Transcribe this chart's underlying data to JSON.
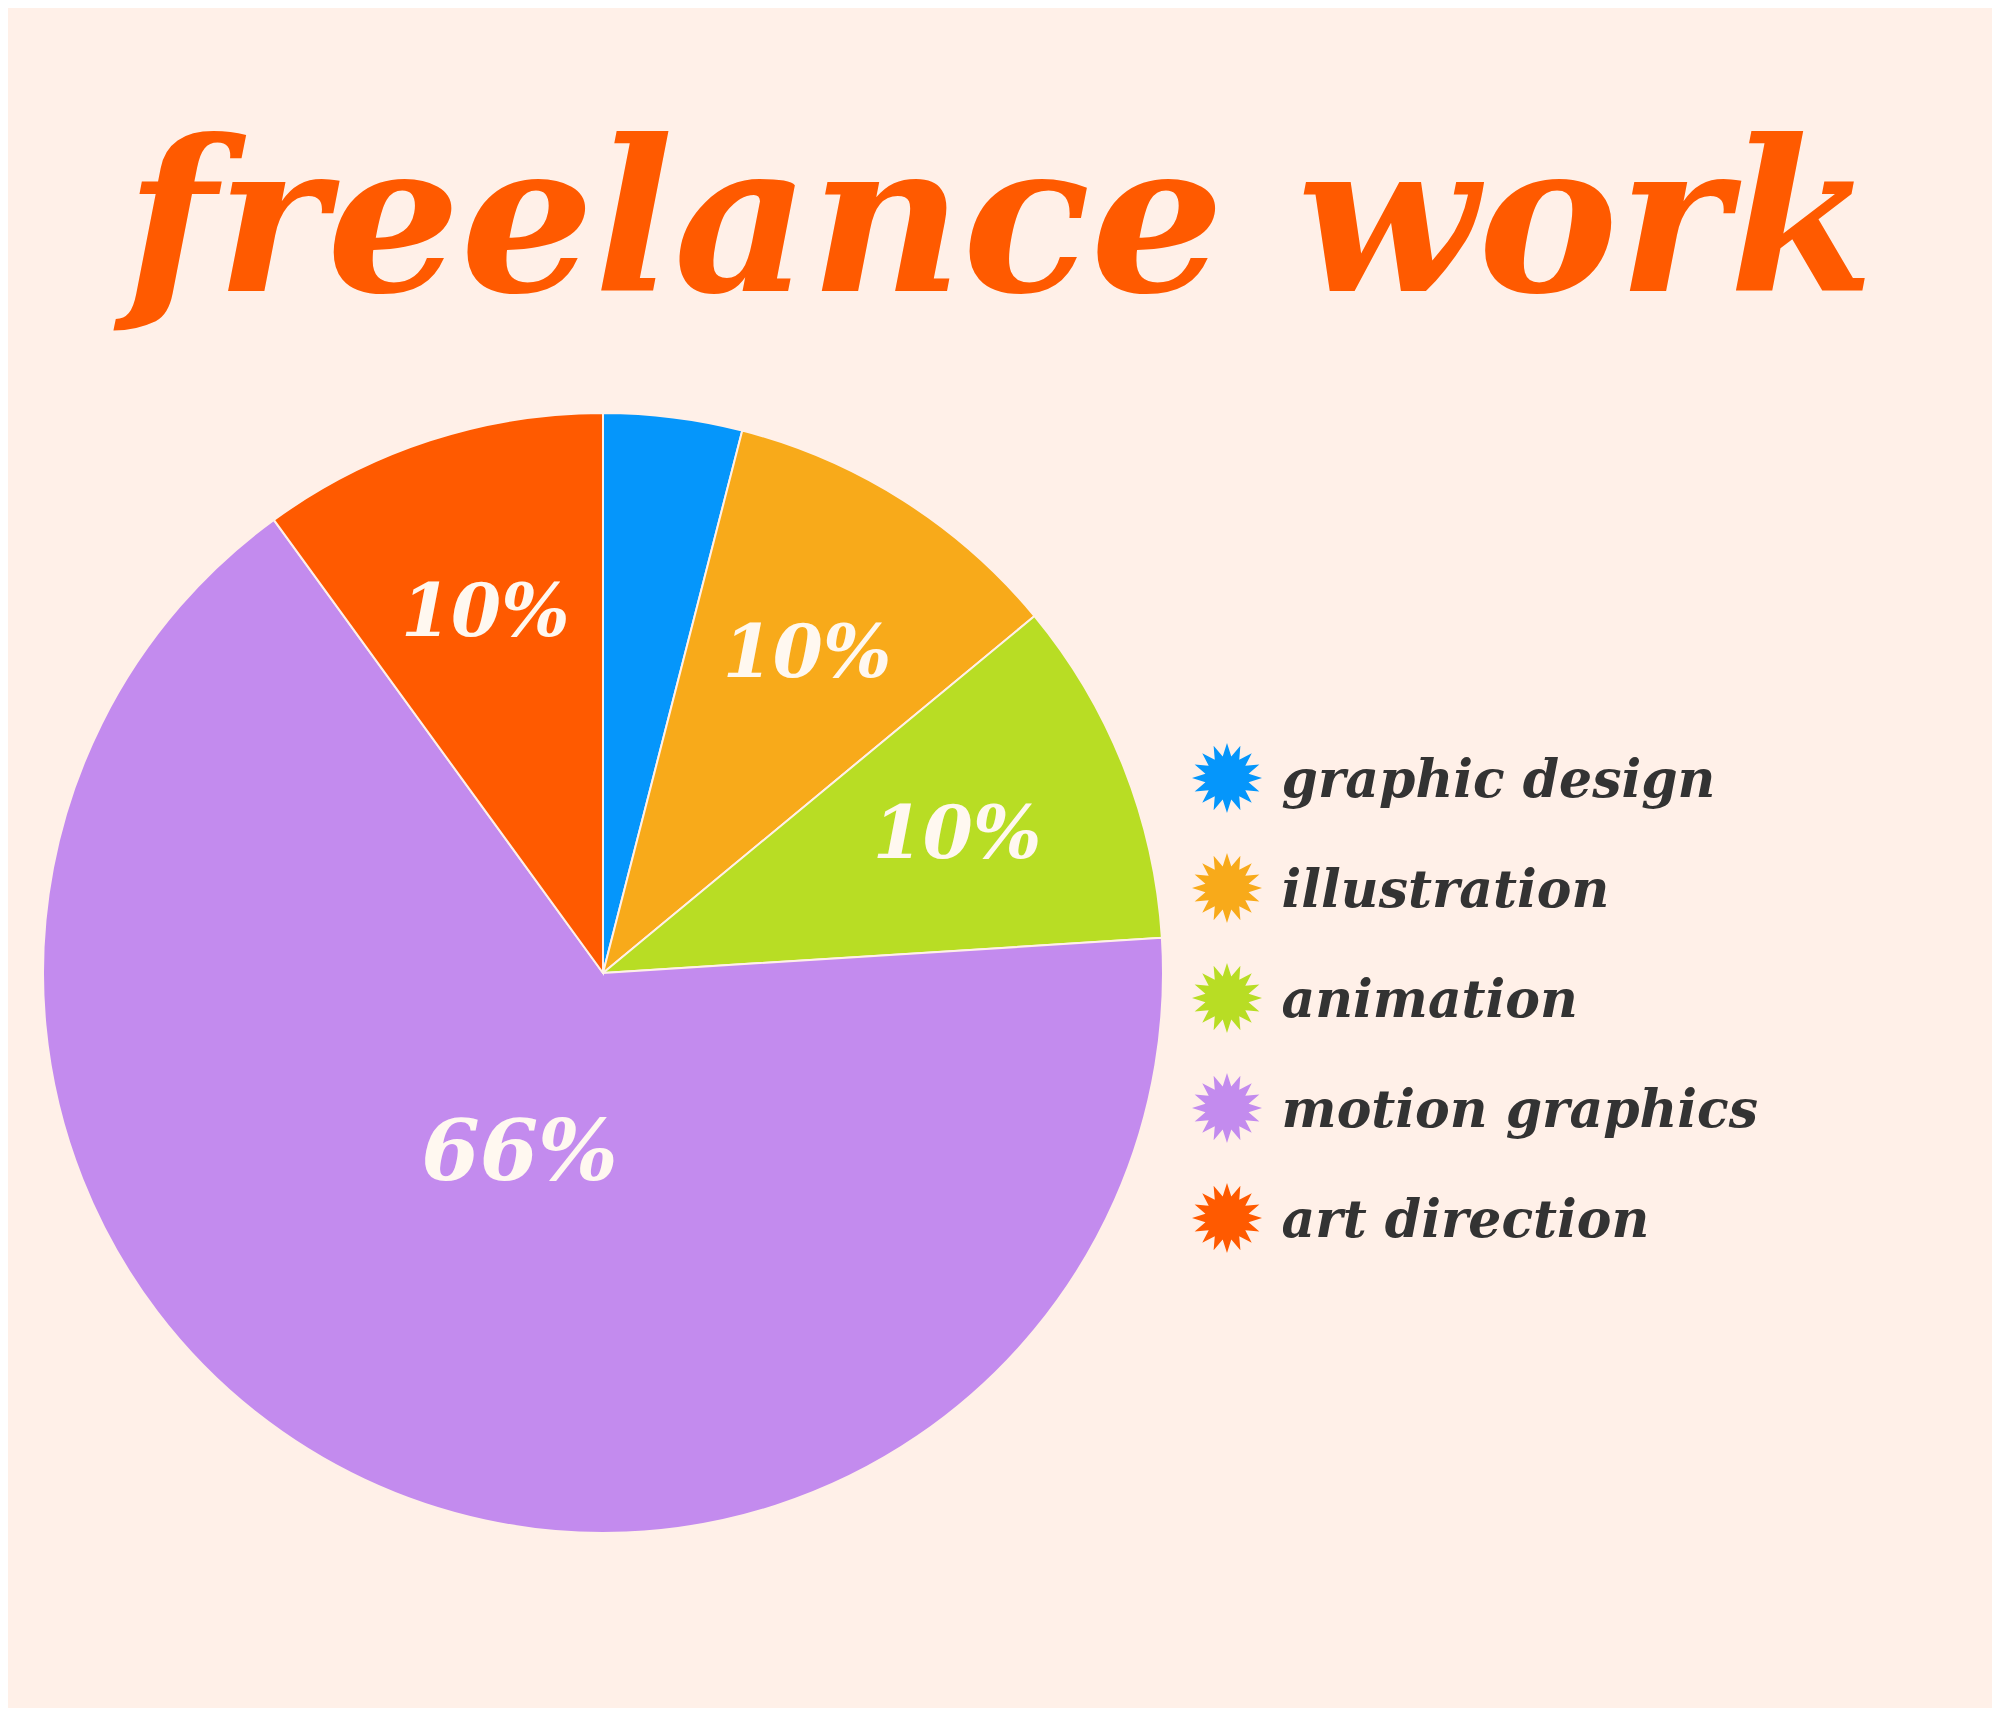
{
  "chart_data": {
    "type": "pie",
    "title": "freelance work",
    "categories": [
      "graphic design",
      "illustration",
      "animation",
      "motion graphics",
      "art direction"
    ],
    "values": [
      4,
      10,
      10,
      66,
      10
    ],
    "colors": [
      "#0596fb",
      "#f8aa1a",
      "#b8dd24",
      "#c38bee",
      "#ff5a00"
    ],
    "value_labels": [
      null,
      "10%",
      "10%",
      "66%",
      "10%"
    ],
    "legend": "right"
  }
}
